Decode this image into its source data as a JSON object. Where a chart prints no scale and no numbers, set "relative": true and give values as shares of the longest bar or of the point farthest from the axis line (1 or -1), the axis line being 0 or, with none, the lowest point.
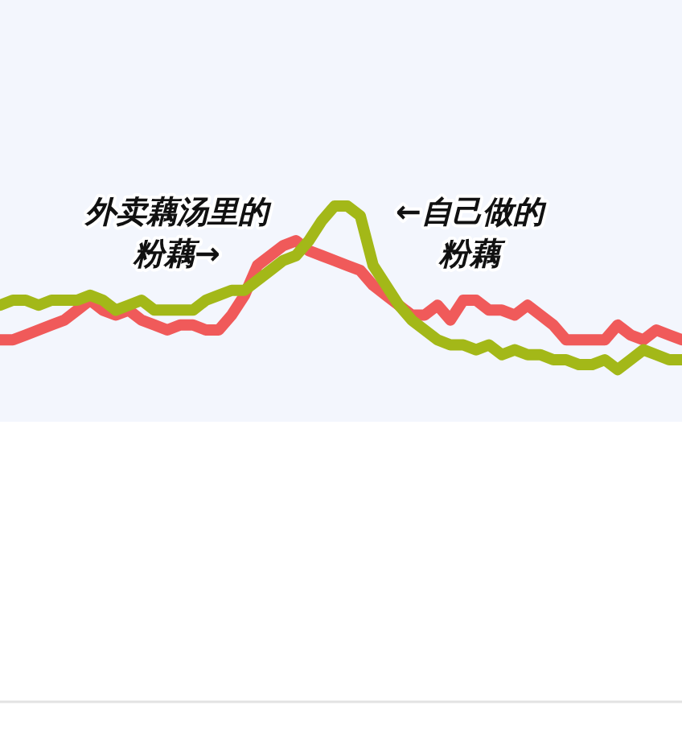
{
  "chart_data": {
    "type": "line",
    "relative": true,
    "marker": "none",
    "line_style": "solid",
    "categories": [
      null,
      null,
      null,
      null,
      null,
      null,
      null,
      null,
      null,
      null,
      null,
      null,
      null,
      null,
      null,
      null,
      null,
      null,
      null,
      null,
      null,
      null,
      null,
      null,
      null,
      null,
      null,
      null,
      null,
      null,
      null,
      null,
      null,
      null,
      null,
      null,
      null,
      null,
      null,
      null,
      null,
      null,
      null,
      null,
      null,
      null,
      null,
      null,
      null,
      null,
      null,
      null,
      null,
      null
    ],
    "series": [
      {
        "color": "#f05a5a",
        "values": [
          0.73,
          0.73,
          0.74,
          0.75,
          0.76,
          0.77,
          0.79,
          0.81,
          0.79,
          0.78,
          0.79,
          0.77,
          0.76,
          0.75,
          0.76,
          0.76,
          0.75,
          0.75,
          0.78,
          0.82,
          0.88,
          0.9,
          0.92,
          0.93,
          0.91,
          0.9,
          0.89,
          0.88,
          0.87,
          0.84,
          0.82,
          0.8,
          0.78,
          0.78,
          0.8,
          0.77,
          0.81,
          0.81,
          0.79,
          0.79,
          0.78,
          0.8,
          0.78,
          0.76,
          0.73,
          0.73,
          0.73,
          0.73,
          0.76,
          0.74,
          0.73,
          0.75,
          0.74,
          0.73
        ]
      },
      {
        "color": "#a3b818",
        "values": [
          0.8,
          0.81,
          0.81,
          0.8,
          0.81,
          0.81,
          0.81,
          0.82,
          0.81,
          0.79,
          0.8,
          0.81,
          0.79,
          0.79,
          0.79,
          0.79,
          0.81,
          0.82,
          0.83,
          0.83,
          0.85,
          0.87,
          0.89,
          0.9,
          0.93,
          0.97,
          1,
          1,
          0.98,
          0.88,
          0.84,
          0.8,
          0.77,
          0.75,
          0.73,
          0.72,
          0.72,
          0.71,
          0.72,
          0.7,
          0.71,
          0.7,
          0.7,
          0.69,
          0.69,
          0.68,
          0.68,
          0.69,
          0.67,
          0.69,
          0.71,
          0.7,
          0.69,
          0.69
        ]
      }
    ],
    "annotations": [
      "外卖藕汤里的",
      "粉藕→",
      "←自己做的",
      "粉藕"
    ]
  }
}
